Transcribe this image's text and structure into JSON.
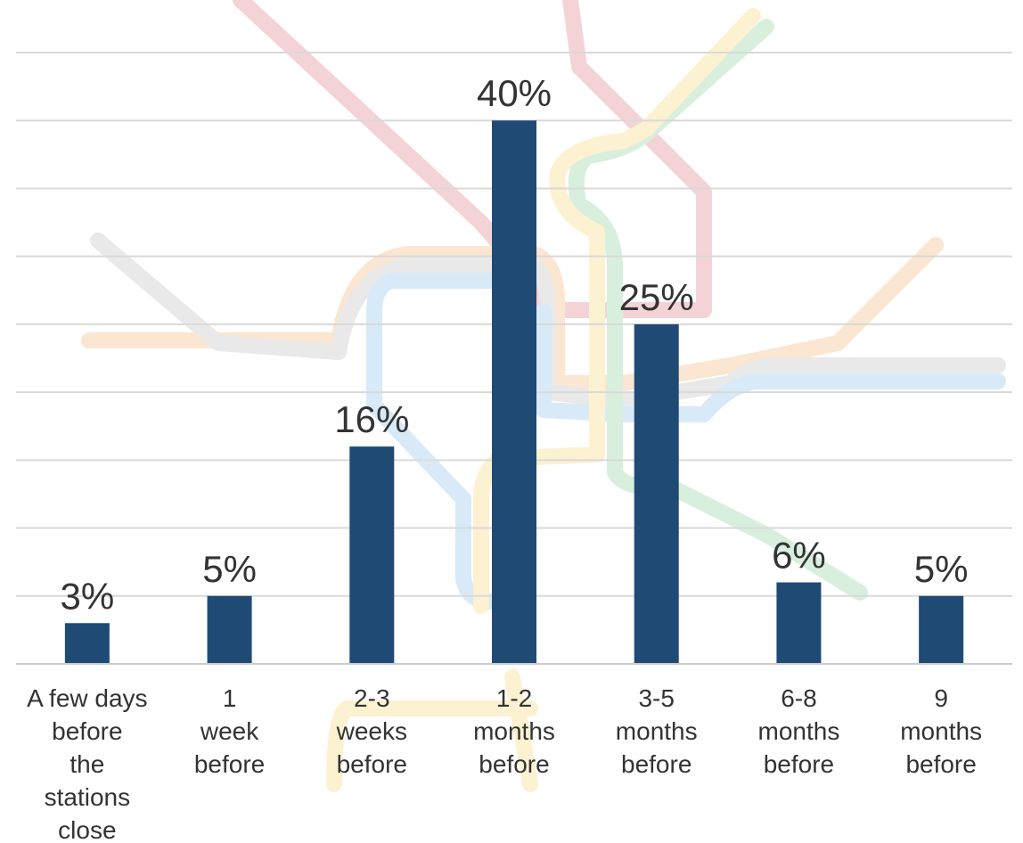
{
  "chart_data": {
    "type": "bar",
    "title": "",
    "xlabel": "",
    "ylabel": "",
    "categories": [
      [
        "A few days",
        "before",
        "the",
        "stations",
        "close"
      ],
      [
        "1",
        "week",
        "before"
      ],
      [
        "2-3",
        "weeks",
        "before"
      ],
      [
        "1-2",
        "months",
        "before"
      ],
      [
        "3-5",
        "months",
        "before"
      ],
      [
        "6-8",
        "months",
        "before"
      ],
      [
        "9",
        "months",
        "before"
      ]
    ],
    "values": [
      3,
      5,
      16,
      40,
      25,
      6,
      5
    ],
    "value_labels": [
      "3%",
      "5%",
      "16%",
      "40%",
      "25%",
      "6%",
      "5%"
    ],
    "ylim": [
      0,
      45
    ],
    "grid": true,
    "legend": "none",
    "colors": {
      "bar": "#1f4a74",
      "grid": "#d9d9d9",
      "text": "#333333"
    }
  }
}
